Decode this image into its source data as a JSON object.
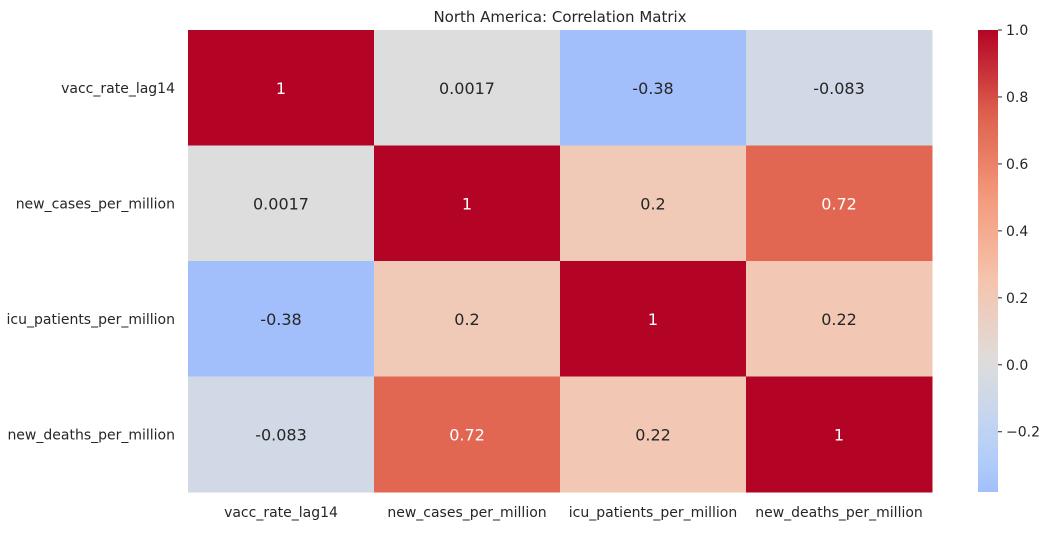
{
  "chart_data": {
    "type": "heatmap",
    "title": "North America: Correlation Matrix",
    "xlabel": "",
    "ylabel": "",
    "row_labels": [
      "vacc_rate_lag14",
      "new_cases_per_million",
      "icu_patients_per_million",
      "new_deaths_per_million"
    ],
    "col_labels": [
      "vacc_rate_lag14",
      "new_cases_per_million",
      "icu_patients_per_million",
      "new_deaths_per_million"
    ],
    "values": [
      [
        1,
        0.0017,
        -0.38,
        -0.083
      ],
      [
        0.0017,
        1,
        0.2,
        0.72
      ],
      [
        -0.38,
        0.2,
        1,
        0.22
      ],
      [
        -0.083,
        0.72,
        0.22,
        1
      ]
    ],
    "annotations": [
      [
        "1",
        "0.0017",
        "-0.38",
        "-0.083"
      ],
      [
        "0.0017",
        "1",
        "0.2",
        "0.72"
      ],
      [
        "-0.38",
        "0.2",
        "1",
        "0.22"
      ],
      [
        "-0.083",
        "0.72",
        "0.22",
        "1"
      ]
    ],
    "colormap": "coolwarm",
    "colorbar": {
      "vmin": -0.38,
      "vmax": 1.0,
      "center": 0,
      "ticks": [
        -0.2,
        0.0,
        0.2,
        0.4,
        0.6,
        0.8,
        1.0
      ],
      "tick_labels": [
        "−0.2",
        "0.0",
        "0.2",
        "0.4",
        "0.6",
        "0.8",
        "1.0"
      ]
    },
    "grid": false
  }
}
